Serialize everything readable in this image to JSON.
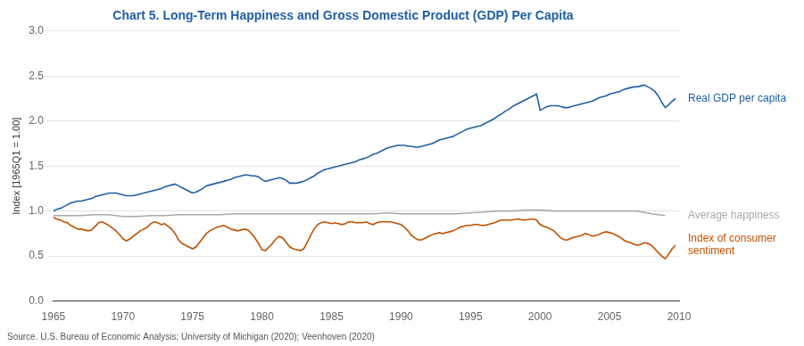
{
  "chart_data": {
    "type": "line",
    "title": "Chart 5. Long-Term Happiness and Gross Domestic Product (GDP) Per Capita",
    "title_color": "#1f5fa6",
    "ylabel": "Index [1965Q1 = 1.00]",
    "source": "Source. U.S. Bureau of Economic Analysis; University of Michigan (2020); Veenhoven (2020)",
    "xlim": [
      1965,
      2010
    ],
    "ylim": [
      0.0,
      3.0
    ],
    "xticks": [
      1965,
      1970,
      1975,
      1980,
      1985,
      1990,
      1995,
      2000,
      2005,
      2010
    ],
    "yticks": [
      {
        "value": 0,
        "label": "0.0"
      },
      0.5,
      {
        "value": 1,
        "label": "1.0"
      },
      1.5,
      {
        "value": 2,
        "label": "2.0"
      },
      2.5,
      {
        "value": 3,
        "label": "3.0"
      }
    ],
    "grid": "y",
    "series": [
      {
        "name": "Real GDP per capita",
        "color": "#1f5fa6",
        "x": [
          1965.0,
          1965.25,
          1965.5,
          1965.75,
          1966.0,
          1966.25,
          1966.5,
          1966.75,
          1967.0,
          1967.25,
          1967.5,
          1967.75,
          1968.0,
          1968.25,
          1968.5,
          1968.75,
          1969.0,
          1969.25,
          1969.5,
          1969.75,
          1970.0,
          1970.25,
          1970.5,
          1970.75,
          1971.0,
          1971.25,
          1971.5,
          1971.75,
          1972.0,
          1972.25,
          1972.5,
          1972.75,
          1973.0,
          1973.25,
          1973.5,
          1973.75,
          1974.0,
          1974.25,
          1974.5,
          1974.75,
          1975.0,
          1975.25,
          1975.5,
          1975.75,
          1976.0,
          1976.25,
          1976.5,
          1976.75,
          1977.0,
          1977.25,
          1977.5,
          1977.75,
          1978.0,
          1978.25,
          1978.5,
          1978.75,
          1979.0,
          1979.25,
          1979.5,
          1979.75,
          1980.0,
          1980.25,
          1980.5,
          1980.75,
          1981.0,
          1981.25,
          1981.5,
          1981.75,
          1982.0,
          1982.25,
          1982.5,
          1982.75,
          1983.0,
          1983.25,
          1983.5,
          1983.75,
          1984.0,
          1984.25,
          1984.5,
          1984.75,
          1985.0,
          1985.25,
          1985.5,
          1985.75,
          1986.0,
          1986.25,
          1986.5,
          1986.75,
          1987.0,
          1987.25,
          1987.5,
          1987.75,
          1988.0,
          1988.25,
          1988.5,
          1988.75,
          1989.0,
          1989.25,
          1989.5,
          1989.75,
          1990.0,
          1990.25,
          1990.5,
          1990.75,
          1991.0,
          1991.25,
          1991.5,
          1991.75,
          1992.0,
          1992.25,
          1992.5,
          1992.75,
          1993.0,
          1993.25,
          1993.5,
          1993.75,
          1994.0,
          1994.25,
          1994.5,
          1994.75,
          1995.0,
          1995.25,
          1995.5,
          1995.75,
          1996.0,
          1996.25,
          1996.5,
          1996.75,
          1997.0,
          1997.25,
          1997.5,
          1997.75,
          1998.0,
          1998.25,
          1998.5,
          1998.75,
          1999.0,
          1999.25,
          1999.5,
          1999.75,
          2000.0,
          2000.25,
          2000.5,
          2000.75,
          2001.0,
          2001.25,
          2001.5,
          2001.75,
          2002.0,
          2002.25,
          2002.5,
          2002.75,
          2003.0,
          2003.25,
          2003.5,
          2003.75,
          2004.0,
          2004.25,
          2004.5,
          2004.75,
          2005.0,
          2005.25,
          2005.5,
          2005.75,
          2006.0,
          2006.25,
          2006.5,
          2006.75,
          2007.0,
          2007.25,
          2007.5,
          2007.75,
          2008.0,
          2008.25,
          2008.5,
          2008.75,
          2009.0,
          2009.25,
          2009.5,
          2009.75
        ],
        "values": [
          1.0,
          1.02,
          1.03,
          1.05,
          1.07,
          1.09,
          1.1,
          1.11,
          1.11,
          1.12,
          1.13,
          1.14,
          1.16,
          1.17,
          1.18,
          1.19,
          1.2,
          1.2,
          1.2,
          1.19,
          1.18,
          1.17,
          1.17,
          1.17,
          1.18,
          1.19,
          1.2,
          1.21,
          1.22,
          1.23,
          1.24,
          1.25,
          1.27,
          1.28,
          1.29,
          1.3,
          1.28,
          1.26,
          1.24,
          1.22,
          1.2,
          1.21,
          1.23,
          1.25,
          1.28,
          1.29,
          1.3,
          1.31,
          1.32,
          1.33,
          1.34,
          1.35,
          1.37,
          1.38,
          1.39,
          1.4,
          1.4,
          1.39,
          1.39,
          1.38,
          1.35,
          1.33,
          1.34,
          1.35,
          1.36,
          1.37,
          1.36,
          1.34,
          1.31,
          1.31,
          1.31,
          1.32,
          1.33,
          1.35,
          1.37,
          1.39,
          1.42,
          1.44,
          1.46,
          1.47,
          1.48,
          1.49,
          1.5,
          1.51,
          1.52,
          1.53,
          1.54,
          1.55,
          1.57,
          1.58,
          1.59,
          1.61,
          1.63,
          1.64,
          1.66,
          1.68,
          1.7,
          1.71,
          1.72,
          1.73,
          1.73,
          1.73,
          1.72,
          1.72,
          1.71,
          1.71,
          1.72,
          1.73,
          1.74,
          1.75,
          1.77,
          1.79,
          1.8,
          1.81,
          1.82,
          1.83,
          1.85,
          1.87,
          1.89,
          1.91,
          1.92,
          1.93,
          1.94,
          1.95,
          1.97,
          1.99,
          2.01,
          2.03,
          2.06,
          2.08,
          2.11,
          2.13,
          2.16,
          2.18,
          2.2,
          2.22,
          2.24,
          2.26,
          2.28,
          2.3,
          2.12,
          2.14,
          2.16,
          2.17,
          2.17,
          2.17,
          2.16,
          2.15,
          2.15,
          2.16,
          2.17,
          2.18,
          2.19,
          2.2,
          2.21,
          2.22,
          2.24,
          2.26,
          2.27,
          2.28,
          2.3,
          2.31,
          2.32,
          2.33,
          2.35,
          2.36,
          2.37,
          2.38,
          2.38,
          2.39,
          2.4,
          2.38,
          2.36,
          2.33,
          2.28,
          2.21,
          2.15,
          2.18,
          2.22,
          2.25
        ]
      },
      {
        "name": "Average happiness",
        "color": "#aaaaaa",
        "x": [
          1965,
          1966,
          1967,
          1968,
          1969,
          1970,
          1971,
          1972,
          1973,
          1974,
          1975,
          1976,
          1977,
          1978,
          1979,
          1980,
          1981,
          1982,
          1983,
          1984,
          1985,
          1986,
          1987,
          1988,
          1989,
          1990,
          1991,
          1992,
          1993,
          1994,
          1995,
          1996,
          1997,
          1998,
          1999,
          2000,
          2001,
          2002,
          2003,
          2004,
          2005,
          2006,
          2007,
          2008,
          2009
        ],
        "values": [
          0.95,
          0.95,
          0.95,
          0.96,
          0.96,
          0.94,
          0.94,
          0.95,
          0.95,
          0.96,
          0.96,
          0.96,
          0.96,
          0.97,
          0.97,
          0.97,
          0.97,
          0.97,
          0.97,
          0.97,
          0.97,
          0.97,
          0.97,
          0.97,
          0.98,
          0.97,
          0.97,
          0.97,
          0.97,
          0.97,
          0.98,
          0.99,
          1.0,
          1.0,
          1.01,
          1.01,
          1.0,
          1.0,
          1.0,
          1.0,
          1.0,
          1.0,
          1.0,
          0.97,
          0.95
        ]
      },
      {
        "name": "Index of consumer\nsentiment",
        "color": "#c05000",
        "x": [
          1965.0,
          1965.25,
          1965.5,
          1965.75,
          1966.0,
          1966.25,
          1966.5,
          1966.75,
          1967.0,
          1967.25,
          1967.5,
          1967.75,
          1968.0,
          1968.25,
          1968.5,
          1968.75,
          1969.0,
          1969.25,
          1969.5,
          1969.75,
          1970.0,
          1970.25,
          1970.5,
          1970.75,
          1971.0,
          1971.25,
          1971.5,
          1971.75,
          1972.0,
          1972.25,
          1972.5,
          1972.75,
          1973.0,
          1973.25,
          1973.5,
          1973.75,
          1974.0,
          1974.25,
          1974.5,
          1974.75,
          1975.0,
          1975.25,
          1975.5,
          1975.75,
          1976.0,
          1976.25,
          1976.5,
          1976.75,
          1977.0,
          1977.25,
          1977.5,
          1977.75,
          1978.0,
          1978.25,
          1978.5,
          1978.75,
          1979.0,
          1979.25,
          1979.5,
          1979.75,
          1980.0,
          1980.25,
          1980.5,
          1980.75,
          1981.0,
          1981.25,
          1981.5,
          1981.75,
          1982.0,
          1982.25,
          1982.5,
          1982.75,
          1983.0,
          1983.25,
          1983.5,
          1983.75,
          1984.0,
          1984.25,
          1984.5,
          1984.75,
          1985.0,
          1985.25,
          1985.5,
          1985.75,
          1986.0,
          1986.25,
          1986.5,
          1986.75,
          1987.0,
          1987.25,
          1987.5,
          1987.75,
          1988.0,
          1988.25,
          1988.5,
          1988.75,
          1989.0,
          1989.25,
          1989.5,
          1989.75,
          1990.0,
          1990.25,
          1990.5,
          1990.75,
          1991.0,
          1991.25,
          1991.5,
          1991.75,
          1992.0,
          1992.25,
          1992.5,
          1992.75,
          1993.0,
          1993.25,
          1993.5,
          1993.75,
          1994.0,
          1994.25,
          1994.5,
          1994.75,
          1995.0,
          1995.25,
          1995.5,
          1995.75,
          1996.0,
          1996.25,
          1996.5,
          1996.75,
          1997.0,
          1997.25,
          1997.5,
          1997.75,
          1998.0,
          1998.25,
          1998.5,
          1998.75,
          1999.0,
          1999.25,
          1999.5,
          1999.75,
          2000.0,
          2000.25,
          2000.5,
          2000.75,
          2001.0,
          2001.25,
          2001.5,
          2001.75,
          2002.0,
          2002.25,
          2002.5,
          2002.75,
          2003.0,
          2003.25,
          2003.5,
          2003.75,
          2004.0,
          2004.25,
          2004.5,
          2004.75,
          2005.0,
          2005.25,
          2005.5,
          2005.75,
          2006.0,
          2006.25,
          2006.5,
          2006.75,
          2007.0,
          2007.25,
          2007.5,
          2007.75,
          2008.0,
          2008.25,
          2008.5,
          2008.75,
          2009.0,
          2009.25,
          2009.5,
          2009.75
        ],
        "values": [
          0.93,
          0.91,
          0.9,
          0.88,
          0.87,
          0.84,
          0.82,
          0.8,
          0.8,
          0.79,
          0.78,
          0.79,
          0.83,
          0.87,
          0.88,
          0.86,
          0.84,
          0.81,
          0.78,
          0.74,
          0.69,
          0.67,
          0.69,
          0.72,
          0.75,
          0.78,
          0.8,
          0.82,
          0.86,
          0.88,
          0.87,
          0.85,
          0.86,
          0.83,
          0.8,
          0.75,
          0.68,
          0.64,
          0.62,
          0.6,
          0.58,
          0.6,
          0.65,
          0.7,
          0.75,
          0.78,
          0.8,
          0.82,
          0.83,
          0.84,
          0.82,
          0.8,
          0.79,
          0.78,
          0.79,
          0.8,
          0.79,
          0.75,
          0.7,
          0.64,
          0.57,
          0.56,
          0.6,
          0.64,
          0.69,
          0.72,
          0.7,
          0.65,
          0.6,
          0.58,
          0.57,
          0.56,
          0.58,
          0.65,
          0.73,
          0.8,
          0.85,
          0.87,
          0.88,
          0.87,
          0.86,
          0.87,
          0.86,
          0.85,
          0.86,
          0.88,
          0.88,
          0.87,
          0.87,
          0.87,
          0.88,
          0.86,
          0.85,
          0.87,
          0.88,
          0.88,
          0.88,
          0.88,
          0.87,
          0.86,
          0.85,
          0.82,
          0.78,
          0.73,
          0.7,
          0.68,
          0.68,
          0.7,
          0.72,
          0.74,
          0.75,
          0.76,
          0.75,
          0.76,
          0.77,
          0.78,
          0.8,
          0.82,
          0.83,
          0.84,
          0.84,
          0.85,
          0.85,
          0.84,
          0.84,
          0.85,
          0.86,
          0.87,
          0.89,
          0.9,
          0.9,
          0.9,
          0.9,
          0.91,
          0.91,
          0.9,
          0.9,
          0.91,
          0.91,
          0.9,
          0.85,
          0.83,
          0.82,
          0.8,
          0.78,
          0.74,
          0.7,
          0.68,
          0.68,
          0.7,
          0.71,
          0.72,
          0.73,
          0.75,
          0.74,
          0.72,
          0.73,
          0.74,
          0.76,
          0.77,
          0.76,
          0.75,
          0.73,
          0.71,
          0.68,
          0.66,
          0.65,
          0.63,
          0.62,
          0.63,
          0.65,
          0.64,
          0.62,
          0.58,
          0.54,
          0.5,
          0.47,
          0.52,
          0.58,
          0.62
        ]
      }
    ]
  }
}
